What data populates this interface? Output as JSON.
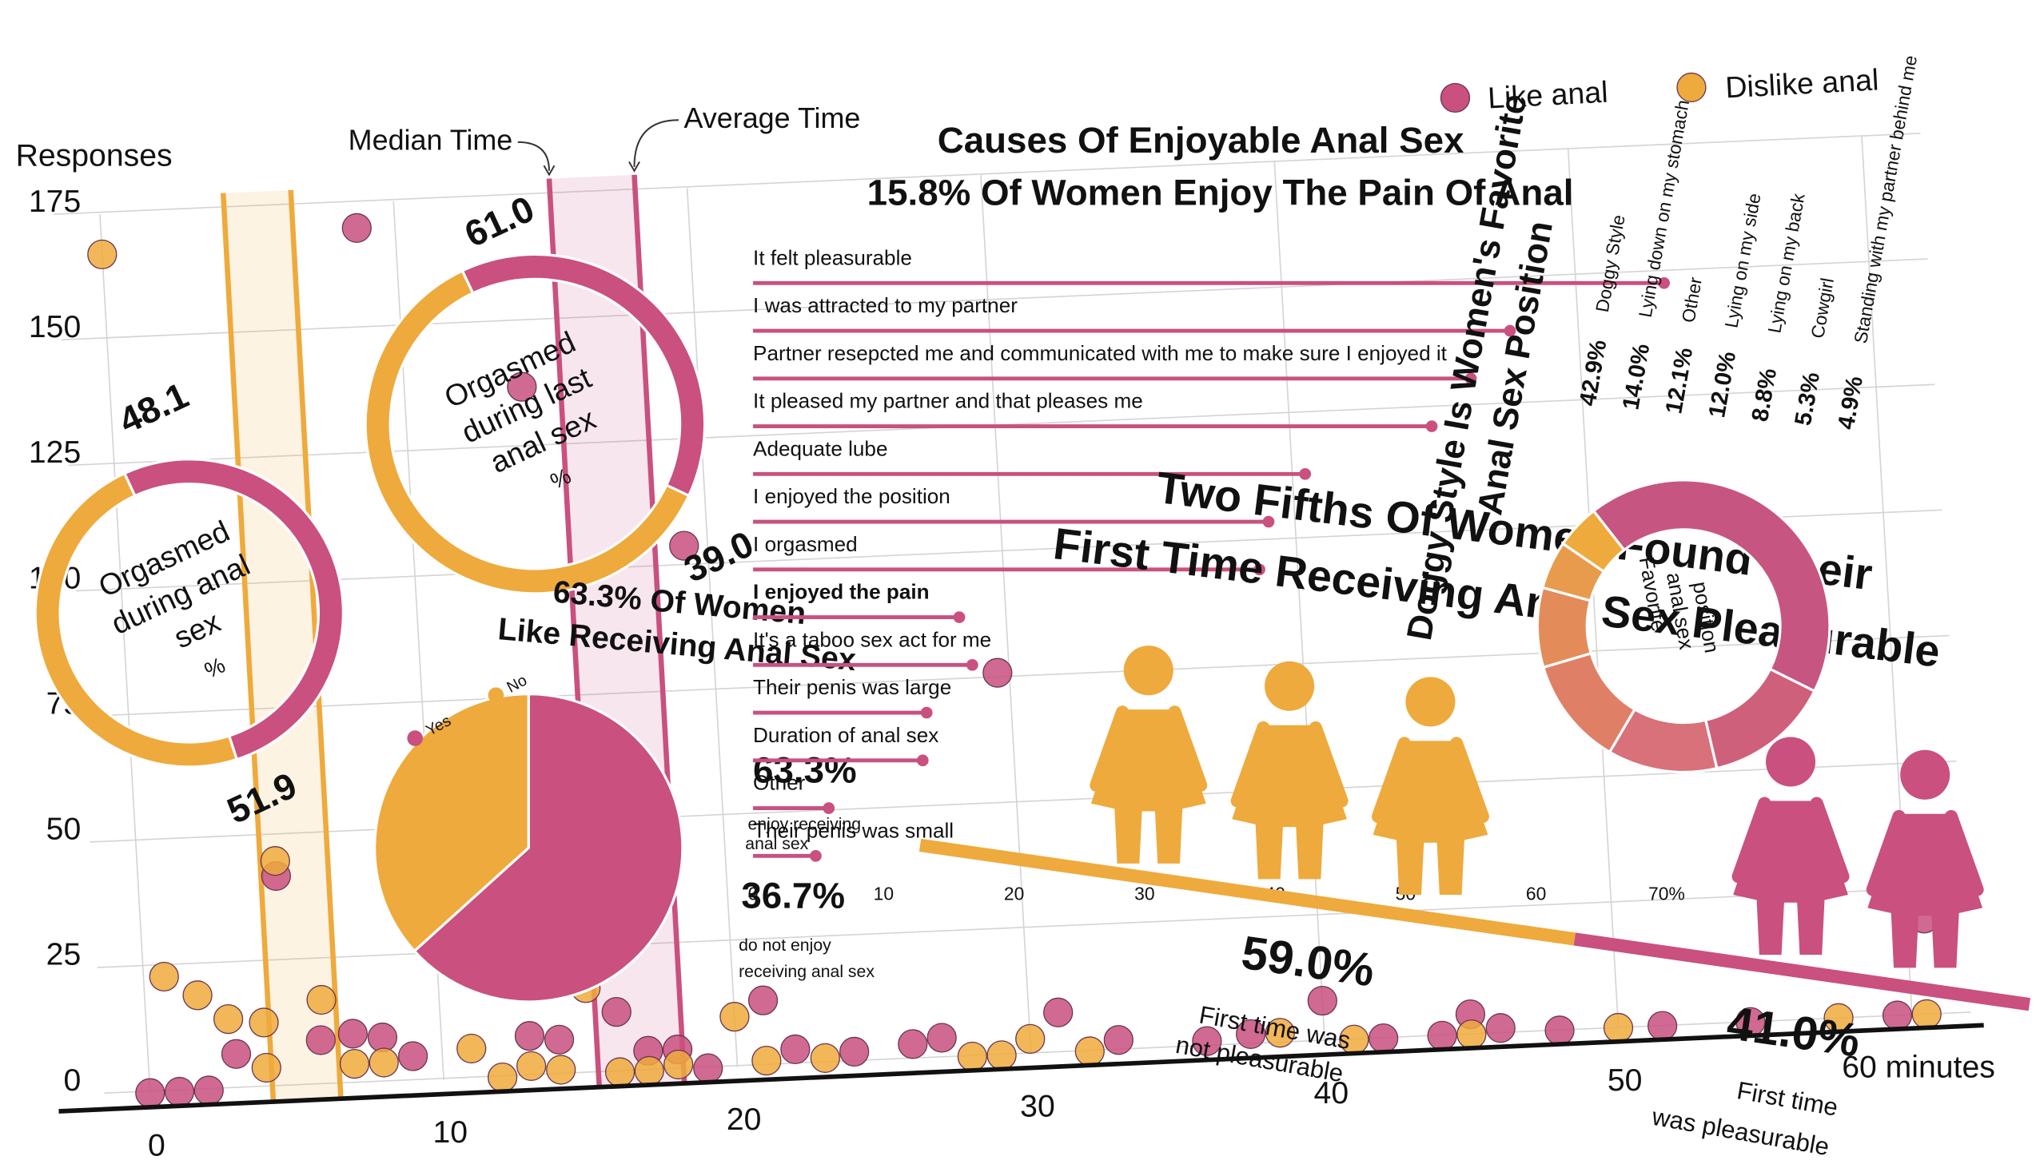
{
  "chart_data": [
    {
      "type": "scatter",
      "y_label": "Responses",
      "xlim": [
        0,
        62
      ],
      "ylim": [
        0,
        175
      ],
      "xticks": [
        0,
        10,
        20,
        30,
        40,
        50,
        {
          "value": 60,
          "label": "60 minutes"
        }
      ],
      "yticks": [
        0,
        25,
        50,
        75,
        100,
        125,
        150,
        175
      ],
      "grid": true,
      "series": [
        {
          "name": "Like anal",
          "color": "#c9507f",
          "x": [
            0,
            1,
            2,
            3,
            4.7,
            5.9,
            7,
            8,
            8.7,
            9,
            13,
            14,
            14,
            16,
            17,
            18,
            19,
            19.2,
            21,
            22,
            24,
            26,
            27,
            29.6,
            31,
            33,
            36,
            37.5,
            40,
            42,
            44,
            45,
            46,
            48,
            51.5,
            54.5,
            59.5,
            60.6
          ],
          "values": [
            0,
            0,
            0,
            7,
            42,
            9,
            10,
            9,
            170,
            5,
            8,
            7,
            137,
            12,
            4,
            4,
            0,
            104,
            13,
            3,
            2,
            3,
            4,
            76,
            8,
            2,
            1,
            2,
            8,
            0,
            0,
            4,
            1,
            0,
            0,
            0,
            0,
            19
          ]
        },
        {
          "name": "Dislike anal",
          "color": "#eeaa3c",
          "x": [
            0,
            0.7,
            1.8,
            2.8,
            4,
            4,
            4.7,
            6,
            7,
            8,
            11,
            12,
            13,
            14,
            15,
            16,
            17,
            18,
            20,
            21,
            23,
            28,
            29,
            30,
            32,
            38.5,
            41,
            45,
            50,
            57.5,
            60.5
          ],
          "values": [
            167,
            23,
            19,
            14,
            13,
            4,
            45,
            17,
            4,
            4,
            6,
            0,
            2,
            1,
            17,
            0,
            0,
            1,
            10,
            1,
            1,
            0,
            0,
            3,
            0,
            2,
            0,
            0,
            0,
            0,
            0
          ]
        }
      ],
      "reference_lines": [
        {
          "label": "Median Time",
          "x": 15.3,
          "color": "#c9507f"
        },
        {
          "label": "Average Time",
          "x": 18.2,
          "color": "#c9507f"
        },
        {
          "x": 4.2,
          "color": "#eeaa3c"
        },
        {
          "x": 6.5,
          "color": "#eeaa3c"
        }
      ]
    },
    {
      "type": "donut",
      "title": [
        "Orgasmed",
        "during anal",
        "sex",
        "%"
      ],
      "values": [
        48.1,
        51.9
      ],
      "colors": [
        "#eeaa3c",
        "#c9507f"
      ]
    },
    {
      "type": "donut",
      "title": [
        "Orgasmed",
        "during last",
        "anal sex",
        "%"
      ],
      "values": [
        61.0,
        39.0
      ],
      "value_labels": [
        "61.0",
        "39.0"
      ],
      "colors": [
        "#eeaa3c",
        "#c9507f"
      ]
    },
    {
      "type": "pie",
      "title": [
        "63.3% Of Women",
        "Like Receiving Anal Sex"
      ],
      "categories": [
        "Yes",
        "No"
      ],
      "values": [
        63.3,
        36.7
      ],
      "value_labels": [
        "63.3%",
        "36.7%"
      ],
      "value_captions": [
        [
          "enjoy receiving",
          "anal sex"
        ],
        [
          "do not enjoy",
          "receiving anal sex"
        ]
      ],
      "colors": [
        "#c9507f",
        "#eeaa3c"
      ]
    },
    {
      "type": "lollipop",
      "title": "Causes Of Enjoyable Anal Sex",
      "subtitle": "15.8% Of Women Enjoy The Pain Of Anal",
      "categories": [
        "It felt pleasurable",
        "I was attracted to my partner",
        "Partner resepcted me and communicated with me to make sure I enjoyed it",
        "It pleased my partner and that pleases me",
        "Adequate lube",
        "I enjoyed the position",
        "I orgasmed",
        "I enjoyed the pain",
        "It's a taboo sex act for me",
        "Their penis was large",
        "Duration of anal sex",
        "Other",
        "Their penis was small"
      ],
      "values": [
        69.8,
        58,
        55,
        52,
        42.3,
        39.5,
        38.8,
        15.8,
        16.8,
        13.3,
        13,
        5.8,
        4.8
      ],
      "highlight": 7,
      "color": "#c9507f",
      "xlim": [
        0,
        70
      ],
      "xticks": [
        0,
        10,
        20,
        30,
        40,
        50,
        60,
        {
          "value": 70,
          "label": "70%"
        }
      ]
    },
    {
      "type": "pictograph",
      "title": [
        "Two Fifths Of Women Found Their",
        "First Time Receiving Anal Sex Pleasurable"
      ],
      "categories": [
        [
          "First time was",
          "not pleasurable"
        ],
        [
          "First time",
          "was pleasurable"
        ]
      ],
      "values": [
        59.0,
        41.0
      ],
      "value_labels": [
        "59.0%",
        "41.0%"
      ],
      "icon_counts": [
        3,
        2
      ],
      "colors": [
        "#eeaa3c",
        "#c9507f"
      ]
    },
    {
      "type": "donut",
      "title": [
        "Doggy Style Is Women's Favorite",
        "Anal Sex Position"
      ],
      "center_text": [
        "Favorite",
        "anal sex",
        "position"
      ],
      "categories": [
        "Doggy Style",
        "Lying down on my stomach",
        "Other",
        "Lying on my side",
        "Lying on my back",
        "Cowgirl",
        "Standing with my partner behind me"
      ],
      "values": [
        42.9,
        14.0,
        12.1,
        12.0,
        8.8,
        5.3,
        4.9
      ],
      "value_labels": [
        "42.9%",
        "14.0%",
        "12.1%",
        "12.0%",
        "8.8%",
        "5.3%",
        "4.9%"
      ],
      "colors": [
        "#c65681",
        "#cf607c",
        "#d8717a",
        "#df8066",
        "#e38c5a",
        "#e89b4d",
        "#eeaa3c"
      ]
    }
  ]
}
